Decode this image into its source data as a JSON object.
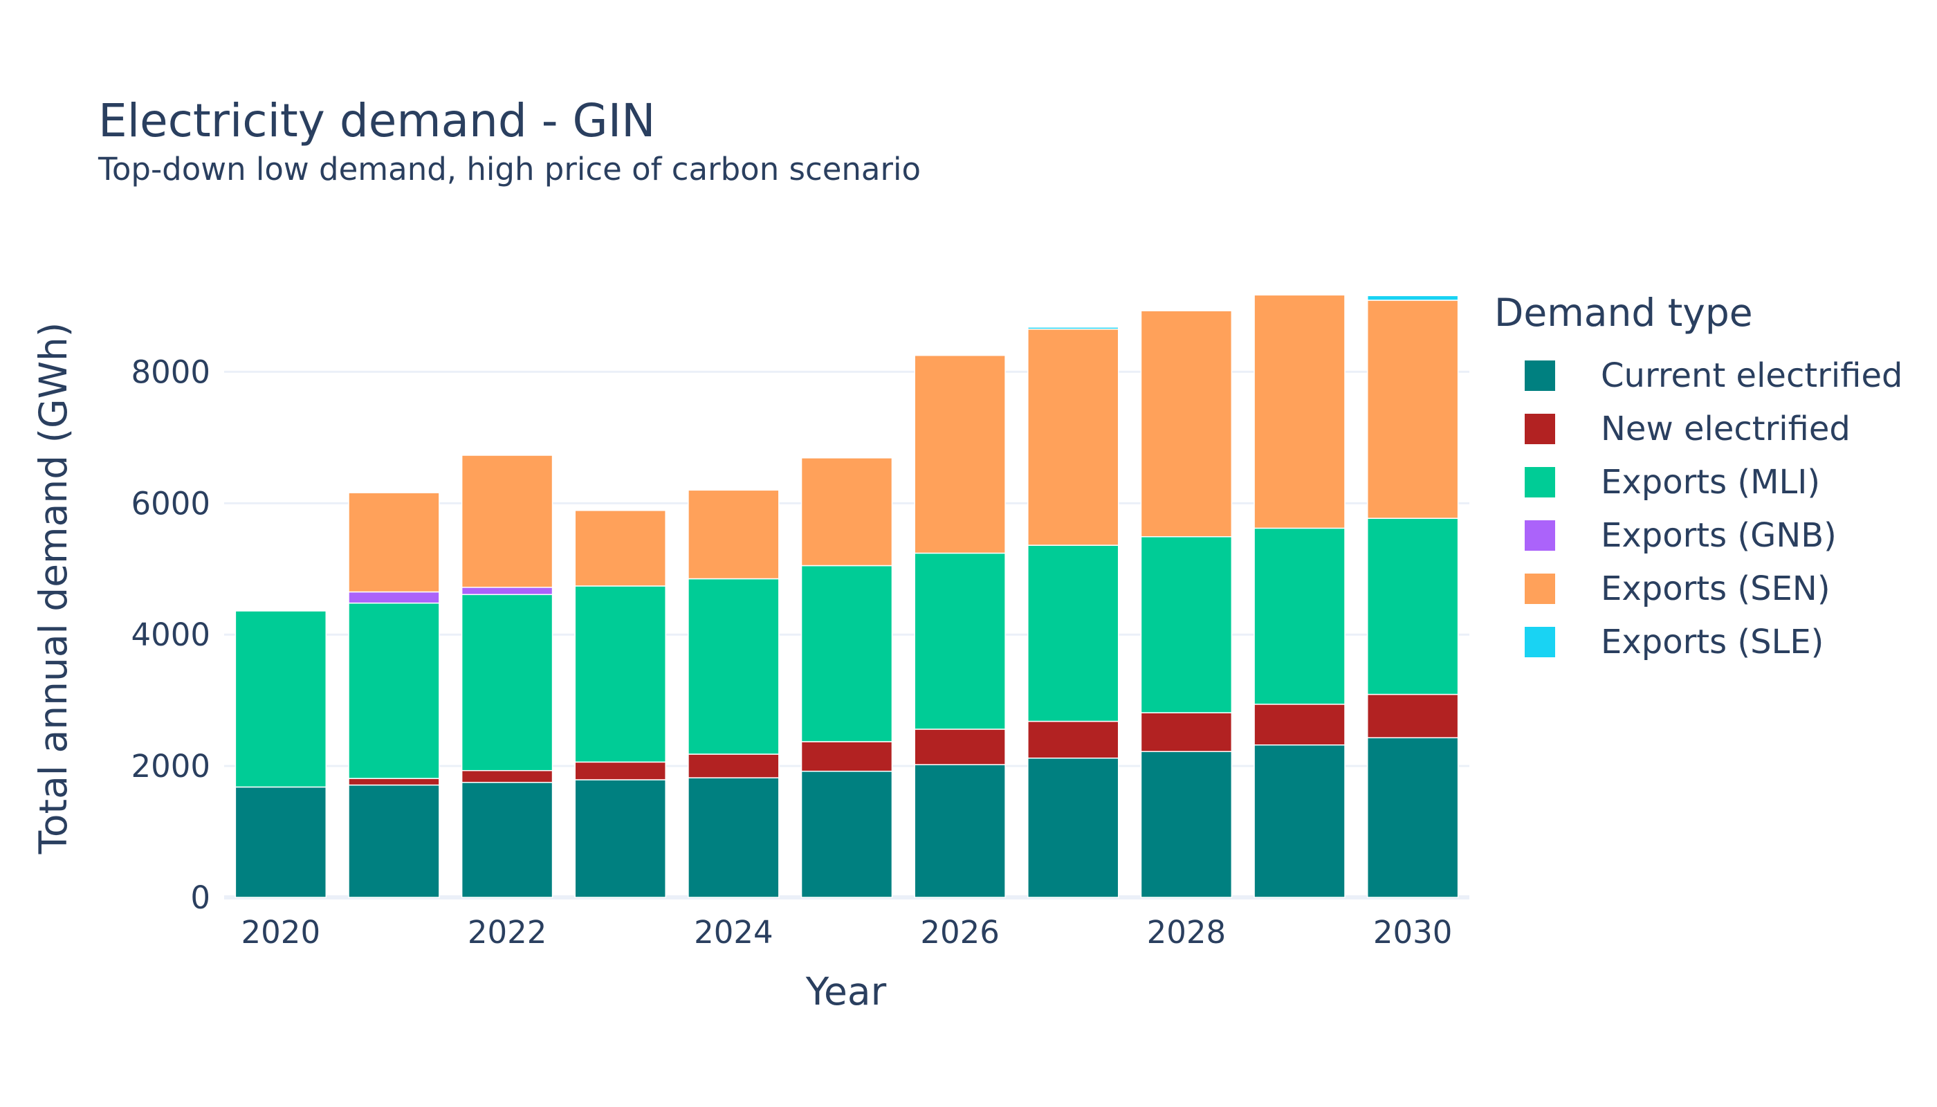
{
  "chart_data": {
    "type": "bar",
    "barmode": "stack",
    "title": "Electricity demand - GIN",
    "subtitle": "Top-down low demand, high price of carbon scenario",
    "xlabel": "Year",
    "ylabel": "Total annual demand (GWh)",
    "ylim": [
      0,
      9500
    ],
    "yticks": [
      0,
      2000,
      4000,
      6000,
      8000
    ],
    "xticks": [
      2020,
      2022,
      2024,
      2026,
      2028,
      2030
    ],
    "x": [
      2020,
      2021,
      2022,
      2023,
      2024,
      2025,
      2026,
      2027,
      2028,
      2029,
      2030
    ],
    "grid": true,
    "legend_title": "Demand type",
    "legend_position": "right",
    "series": [
      {
        "name": "Current electrified",
        "color": "#008080",
        "values": [
          1680,
          1710,
          1750,
          1790,
          1820,
          1920,
          2020,
          2120,
          2220,
          2320,
          2430
        ]
      },
      {
        "name": "New electrified",
        "color": "#b22222",
        "values": [
          0,
          100,
          180,
          270,
          360,
          450,
          540,
          560,
          590,
          620,
          660
        ]
      },
      {
        "name": "Exports (MLI)",
        "color": "#00cc96",
        "values": [
          2680,
          2670,
          2680,
          2680,
          2670,
          2680,
          2680,
          2680,
          2680,
          2680,
          2680
        ]
      },
      {
        "name": "Exports (GNB)",
        "color": "#ab63fa",
        "values": [
          0,
          170,
          110,
          0,
          0,
          0,
          0,
          0,
          0,
          0,
          0
        ]
      },
      {
        "name": "Exports (SEN)",
        "color": "#ffa15a",
        "values": [
          0,
          1510,
          2010,
          1150,
          1350,
          1640,
          3010,
          3290,
          3440,
          3550,
          3320
        ]
      },
      {
        "name": "Exports (SLE)",
        "color": "#19d3f3",
        "values": [
          0,
          0,
          0,
          0,
          0,
          0,
          0,
          30,
          0,
          0,
          70
        ]
      }
    ]
  }
}
